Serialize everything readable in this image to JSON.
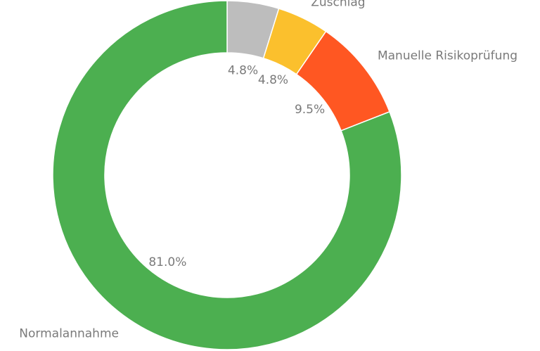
{
  "chart_data": {
    "type": "donut",
    "categories": [
      null,
      "Zuschlag",
      "Manuelle Risikoprüfung",
      "Normalannahme"
    ],
    "values": [
      4.8,
      4.8,
      9.5,
      81.0
    ],
    "value_labels": [
      "4.8%",
      "4.8%",
      "9.5%",
      "81.0%"
    ],
    "colors": [
      "#bdbdbd",
      "#fbc02d",
      "#ff5722",
      "#4caf50"
    ]
  }
}
